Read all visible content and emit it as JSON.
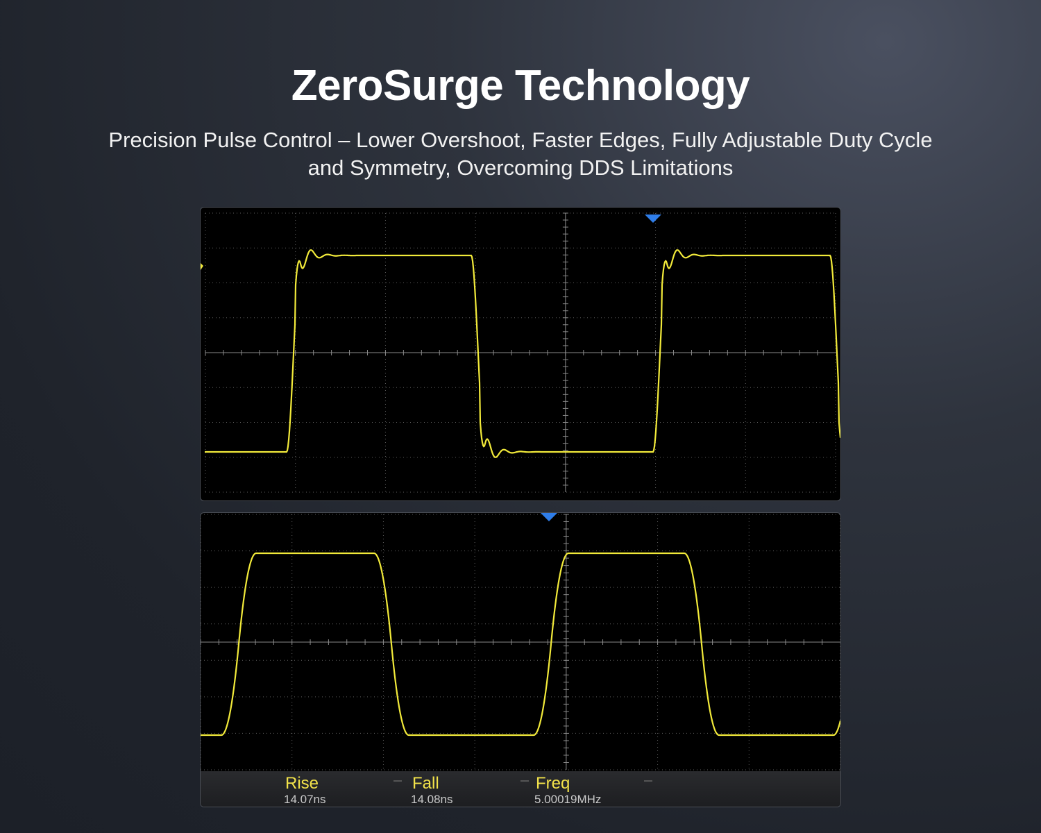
{
  "header": {
    "title": "ZeroSurge Technology",
    "subtitle": "Precision Pulse Control – Lower Overshoot, Faster Edges, Fully Adjustable Duty Cycle and Symmetry, Overcoming DDS Limitations"
  },
  "colors": {
    "trace": "#f2ea3a",
    "trigger_marker": "#2f7de8",
    "screen_bg": "#000000",
    "grid": "#6a6a6a"
  },
  "scope_top": {
    "icons": [
      "trigger-marker-icon",
      "channel-level-marker-icon"
    ]
  },
  "scope_bottom": {
    "icons": [
      "trigger-marker-icon"
    ],
    "measurements": [
      {
        "label": "Rise",
        "value": "14.07ns"
      },
      {
        "label": "Fall",
        "value": "14.08ns"
      },
      {
        "label": "Freq",
        "value": "5.00019MHz"
      }
    ]
  }
}
